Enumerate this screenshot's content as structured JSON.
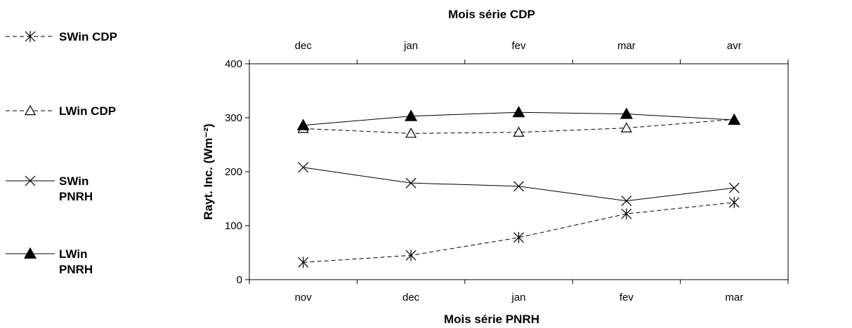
{
  "chart_data": {
    "type": "line",
    "title": "",
    "x_bottom": {
      "label": "Mois série PNRH",
      "categories": [
        "nov",
        "dec",
        "jan",
        "fev",
        "mar"
      ]
    },
    "x_top": {
      "label": "Mois série CDP",
      "categories": [
        "dec",
        "jan",
        "fev",
        "mar",
        "avr"
      ]
    },
    "ylabel": "Rayt. Inc. (Wm⁻²)",
    "ylim": [
      0,
      400
    ],
    "yticks": [
      0,
      100,
      200,
      300,
      400
    ],
    "grid": false,
    "legend_position": "left",
    "series": [
      {
        "name": "SWin CDP",
        "legend_lines": [
          "SWin CDP"
        ],
        "axis": "top",
        "line": "dashed",
        "marker": "asterisk",
        "values": [
          32,
          45,
          78,
          122,
          143
        ]
      },
      {
        "name": "LWin CDP",
        "legend_lines": [
          "LWin CDP"
        ],
        "axis": "top",
        "line": "dashed",
        "marker": "open-triangle",
        "values": [
          280,
          271,
          273,
          281,
          297
        ]
      },
      {
        "name": "SWin PNRH",
        "legend_lines": [
          "SWin",
          "PNRH"
        ],
        "axis": "bottom",
        "line": "solid",
        "marker": "cross",
        "values": [
          208,
          179,
          173,
          146,
          170
        ]
      },
      {
        "name": "LWin PNRH",
        "legend_lines": [
          "LWin",
          "PNRH"
        ],
        "axis": "bottom",
        "line": "solid",
        "marker": "filled-triangle",
        "values": [
          286,
          303,
          310,
          307,
          296
        ]
      }
    ]
  }
}
